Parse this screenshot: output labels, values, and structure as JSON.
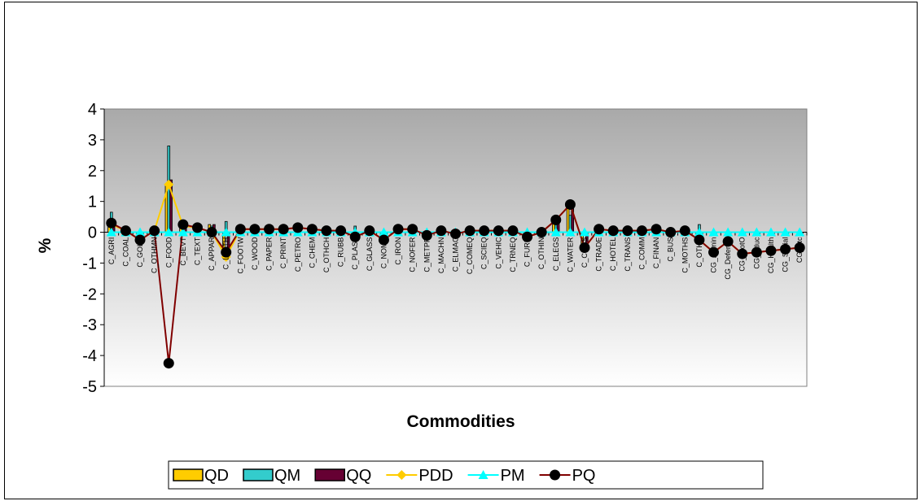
{
  "chart_data": {
    "type": "bar",
    "title": "",
    "xlabel": "Commodities",
    "ylabel": "%",
    "ylim": [
      -5,
      4
    ],
    "yticks": [
      4,
      3,
      2,
      1,
      0,
      -1,
      -2,
      -3,
      -4,
      -5
    ],
    "legend_position": "bottom",
    "categories": [
      "C_AGRI",
      "C_COAL",
      "C_GOLD",
      "C_OTHMN",
      "C_FOOD",
      "C_BEVT",
      "C_TEXT",
      "C_APPAR",
      "C_LEATH",
      "C_FOOTW",
      "C_WOOD",
      "C_PAPER",
      "C_PRINT",
      "C_PETRO",
      "C_CHEM",
      "C_OTHCH",
      "C_RUBB",
      "C_PLAST",
      "C_GLASS",
      "C_NOME",
      "C_IRON",
      "C_NOFER",
      "C_METPR",
      "C_MACHN",
      "C_ELMAC",
      "C_COMEQ",
      "C_SCIEQ",
      "C_VEHIC",
      "C_TRNEQ",
      "C_FURN",
      "C_OTHIN",
      "C_ELEGS",
      "C_WATER",
      "C_CONS",
      "C_TRADE",
      "C_HOTEL",
      "C_TRANS",
      "C_COMM",
      "C_FINAN",
      "C_BUS",
      "C_MOTHS",
      "C_OTHR",
      "CG_Admin",
      "CG_Defence",
      "CG_ProtO",
      "CG_Educ",
      "CG_Health",
      "CG_Social",
      "CG_Etc"
    ],
    "colors": {
      "QD": "#FFCC00",
      "QM": "#33CCCC",
      "QQ": "#660033",
      "PDD": "#FFCC00",
      "PM": "#00FFFF",
      "PQ": "#000000",
      "PQ_line": "#800000"
    },
    "series": [
      {
        "name": "QD",
        "kind": "bar",
        "values": [
          0.3,
          0.05,
          -0.05,
          0.05,
          1.5,
          0.25,
          0.15,
          0.25,
          -0.85,
          0.05,
          0.05,
          0.05,
          0.05,
          0.1,
          0.1,
          0.05,
          0.05,
          -0.1,
          0.05,
          -0.15,
          0.05,
          0.05,
          -0.05,
          0.05,
          -0.02,
          0.05,
          0.05,
          0.05,
          0.05,
          -0.05,
          0.05,
          0.4,
          0.9,
          -0.4,
          0.1,
          0.1,
          0.1,
          0.05,
          0.1,
          0.05,
          0.05,
          -0.2,
          0,
          0,
          0,
          0,
          0,
          0,
          0
        ]
      },
      {
        "name": "QM",
        "kind": "bar",
        "values": [
          0.65,
          0.05,
          0.02,
          0.05,
          2.8,
          0.2,
          0.15,
          0.2,
          0.35,
          0.05,
          0.05,
          0.05,
          0.05,
          0.1,
          0.1,
          0.05,
          0.05,
          0.2,
          0.05,
          0.05,
          0.1,
          0.1,
          0.05,
          0.1,
          0.02,
          0.05,
          0.05,
          0.05,
          0.05,
          0.05,
          0.05,
          0.55,
          0.55,
          0.05,
          0.1,
          0.1,
          0.1,
          0.05,
          0.1,
          0.05,
          0.05,
          0.25,
          0,
          0,
          0,
          0,
          0,
          0,
          0
        ]
      },
      {
        "name": "QQ",
        "kind": "bar",
        "values": [
          0.35,
          0.05,
          -0.05,
          0.05,
          1.7,
          0.25,
          0.15,
          0.25,
          -0.6,
          0.05,
          0.05,
          0.05,
          0.05,
          0.1,
          0.1,
          0.05,
          0.05,
          -0.05,
          0.05,
          -0.1,
          0.05,
          0.05,
          -0.05,
          0.05,
          -0.02,
          0.05,
          0.05,
          0.05,
          0.05,
          -0.05,
          0.05,
          0.45,
          0.85,
          -0.4,
          0.1,
          0.1,
          0.1,
          0.05,
          0.1,
          0.05,
          0.05,
          -0.15,
          -0.02,
          -0.02,
          -0.02,
          -0.05,
          -0.05,
          -0.03,
          -0.03
        ]
      },
      {
        "name": "PDD",
        "kind": "line",
        "values": [
          0.25,
          0.05,
          -0.25,
          0.05,
          1.55,
          0.2,
          0.15,
          0.0,
          -0.8,
          0.1,
          0.1,
          0.1,
          0.1,
          0.15,
          0.1,
          0.05,
          0.05,
          -0.15,
          0.05,
          -0.25,
          0.1,
          0.1,
          -0.1,
          0.05,
          -0.05,
          0.05,
          0.05,
          0.05,
          0.05,
          -0.15,
          0.0,
          0.4,
          0.9,
          -0.5,
          0.1,
          0.05,
          0.05,
          0.05,
          0.1,
          0.0,
          0.05,
          -0.25,
          -0.65,
          -0.3,
          -0.7,
          -0.65,
          -0.6,
          -0.55,
          -0.5
        ]
      },
      {
        "name": "PM",
        "kind": "line",
        "values": [
          0,
          0,
          0,
          0,
          0,
          0,
          0,
          0,
          0,
          0,
          0,
          0,
          0,
          0,
          0,
          0,
          0,
          0,
          0,
          0,
          0,
          0,
          0,
          0,
          0,
          0,
          0,
          0,
          0,
          0,
          0,
          0,
          0,
          0,
          0,
          0,
          0,
          0,
          0,
          0,
          0,
          0,
          0,
          0,
          0,
          0,
          0,
          0,
          0
        ]
      },
      {
        "name": "PQ",
        "kind": "line",
        "values": [
          0.3,
          0.05,
          -0.25,
          0.05,
          -4.25,
          0.25,
          0.15,
          0.0,
          -0.65,
          0.1,
          0.1,
          0.1,
          0.1,
          0.15,
          0.1,
          0.05,
          0.05,
          -0.15,
          0.05,
          -0.25,
          0.1,
          0.1,
          -0.1,
          0.05,
          -0.05,
          0.05,
          0.05,
          0.05,
          0.05,
          -0.15,
          0.0,
          0.4,
          0.9,
          -0.5,
          0.1,
          0.05,
          0.05,
          0.05,
          0.1,
          0.0,
          0.05,
          -0.25,
          -0.65,
          -0.3,
          -0.7,
          -0.65,
          -0.6,
          -0.55,
          -0.5
        ]
      }
    ]
  }
}
